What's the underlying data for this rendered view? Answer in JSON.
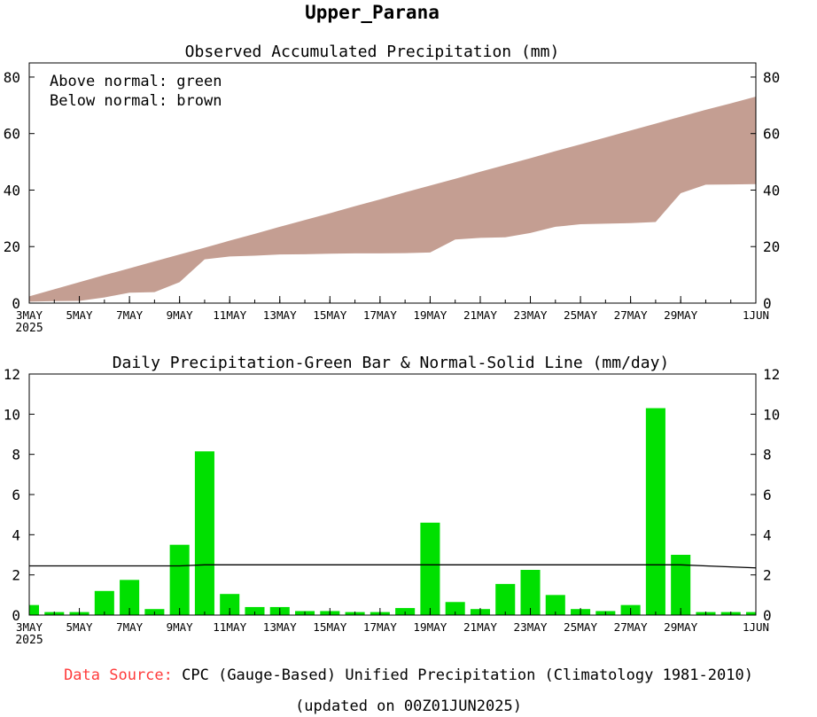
{
  "page": {
    "title": "Upper_Parana"
  },
  "chart_data": [
    {
      "type": "area",
      "title": "Observed Accumulated Precipitation (mm)",
      "legend": [
        "Above normal: green",
        "Below normal: brown"
      ],
      "colors": {
        "above": "#00e000",
        "below": "#c49e92"
      },
      "ylim": [
        0,
        85
      ],
      "yticks": [
        0,
        20,
        40,
        60,
        80
      ],
      "xlim": [
        0,
        29
      ],
      "xticks": [
        {
          "day": 0,
          "label": "3MAY"
        },
        {
          "day": 2,
          "label": "5MAY"
        },
        {
          "day": 4,
          "label": "7MAY"
        },
        {
          "day": 6,
          "label": "9MAY"
        },
        {
          "day": 8,
          "label": "11MAY"
        },
        {
          "day": 10,
          "label": "13MAY"
        },
        {
          "day": 12,
          "label": "15MAY"
        },
        {
          "day": 14,
          "label": "17MAY"
        },
        {
          "day": 16,
          "label": "19MAY"
        },
        {
          "day": 18,
          "label": "21MAY"
        },
        {
          "day": 20,
          "label": "23MAY"
        },
        {
          "day": 22,
          "label": "25MAY"
        },
        {
          "day": 24,
          "label": "27MAY"
        },
        {
          "day": 26,
          "label": "29MAY"
        },
        {
          "day": 29,
          "label": "1JUN"
        }
      ],
      "year_label": "2025",
      "normal": [
        2.4,
        4.9,
        7.4,
        9.9,
        12.3,
        14.8,
        17.2,
        19.6,
        22.1,
        24.5,
        27.0,
        29.4,
        31.8,
        34.3,
        36.7,
        39.2,
        41.6,
        44.0,
        46.5,
        48.9,
        51.3,
        53.8,
        56.2,
        58.6,
        61.1,
        63.5,
        66.0,
        68.4,
        70.7,
        73.1
      ],
      "observed": [
        0.5,
        0.7,
        0.8,
        2.0,
        3.7,
        3.9,
        7.4,
        15.5,
        16.5,
        16.8,
        17.2,
        17.3,
        17.5,
        17.6,
        17.6,
        17.7,
        17.9,
        22.5,
        23.1,
        23.3,
        24.8,
        27.0,
        27.9,
        28.1,
        28.3,
        28.7,
        38.9,
        41.9,
        42.0,
        42.1
      ]
    },
    {
      "type": "bar",
      "title": "Daily Precipitation-Green Bar & Normal-Solid Line (mm/day)",
      "bar_color": "#00e000",
      "ylim": [
        0,
        12
      ],
      "yticks": [
        0,
        2,
        4,
        6,
        8,
        10,
        12
      ],
      "values": [
        0.5,
        0.15,
        0.15,
        1.2,
        1.75,
        0.3,
        3.5,
        8.15,
        1.05,
        0.4,
        0.4,
        0.2,
        0.2,
        0.15,
        0.15,
        0.35,
        4.6,
        0.65,
        0.3,
        1.55,
        2.25,
        1.0,
        0.3,
        0.2,
        0.5,
        10.3,
        3.0,
        0.15,
        0.15,
        0.15
      ],
      "normal": [
        2.45,
        2.45,
        2.45,
        2.45,
        2.45,
        2.45,
        2.45,
        2.5,
        2.5,
        2.5,
        2.5,
        2.5,
        2.5,
        2.5,
        2.5,
        2.5,
        2.5,
        2.5,
        2.5,
        2.5,
        2.5,
        2.5,
        2.5,
        2.5,
        2.5,
        2.5,
        2.5,
        2.45,
        2.4,
        2.35
      ]
    }
  ],
  "footer": {
    "source_label": "Data Source:",
    "source_text": "CPC (Gauge-Based) Unified Precipitation (Climatology 1981-2010)",
    "updated": "(updated on 00Z01JUN2025)"
  }
}
